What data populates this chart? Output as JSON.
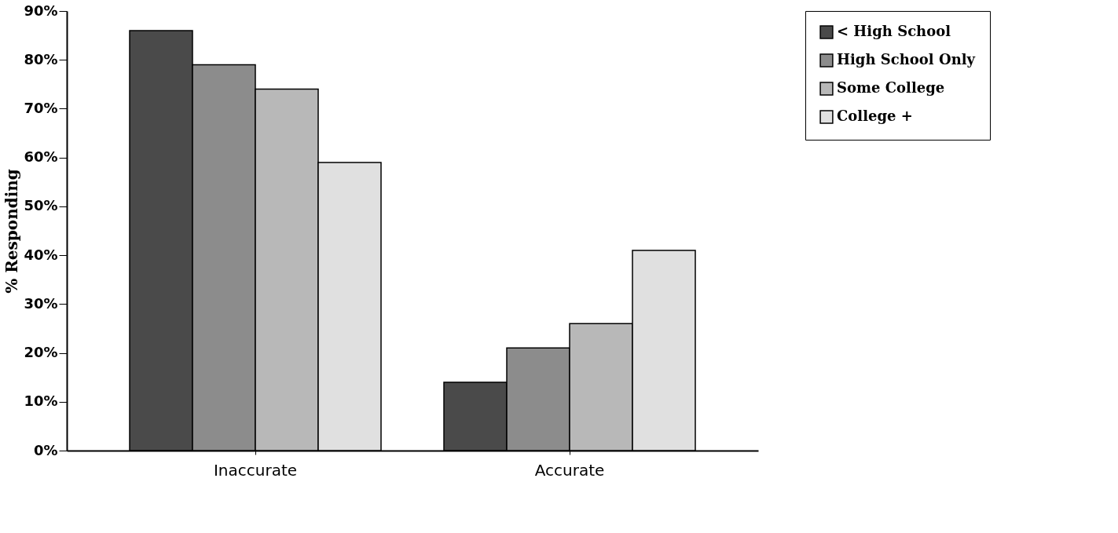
{
  "chart_data": {
    "type": "bar",
    "ylabel": "% Responding",
    "categories": [
      "Inaccurate",
      "Accurate"
    ],
    "series": [
      {
        "name": "< High School",
        "color": "#4a4a4a",
        "values": [
          86,
          14
        ]
      },
      {
        "name": "High School Only",
        "color": "#8c8c8c",
        "values": [
          79,
          21
        ]
      },
      {
        "name": "Some College",
        "color": "#b8b8b8",
        "values": [
          74,
          26
        ]
      },
      {
        "name": "College +",
        "color": "#e0e0e0",
        "values": [
          59,
          41
        ]
      }
    ],
    "ylim": [
      0,
      90
    ],
    "yticks": [
      {
        "value": 0,
        "label": "0%"
      },
      {
        "value": 10,
        "label": "10%"
      },
      {
        "value": 20,
        "label": "20%"
      },
      {
        "value": 30,
        "label": "30%"
      },
      {
        "value": 40,
        "label": "40%"
      },
      {
        "value": 50,
        "label": "50%"
      },
      {
        "value": 60,
        "label": "60%"
      },
      {
        "value": 70,
        "label": "70%"
      },
      {
        "value": 80,
        "label": "80%"
      },
      {
        "value": 90,
        "label": "90%"
      }
    ],
    "grid": false,
    "legend": "right"
  }
}
